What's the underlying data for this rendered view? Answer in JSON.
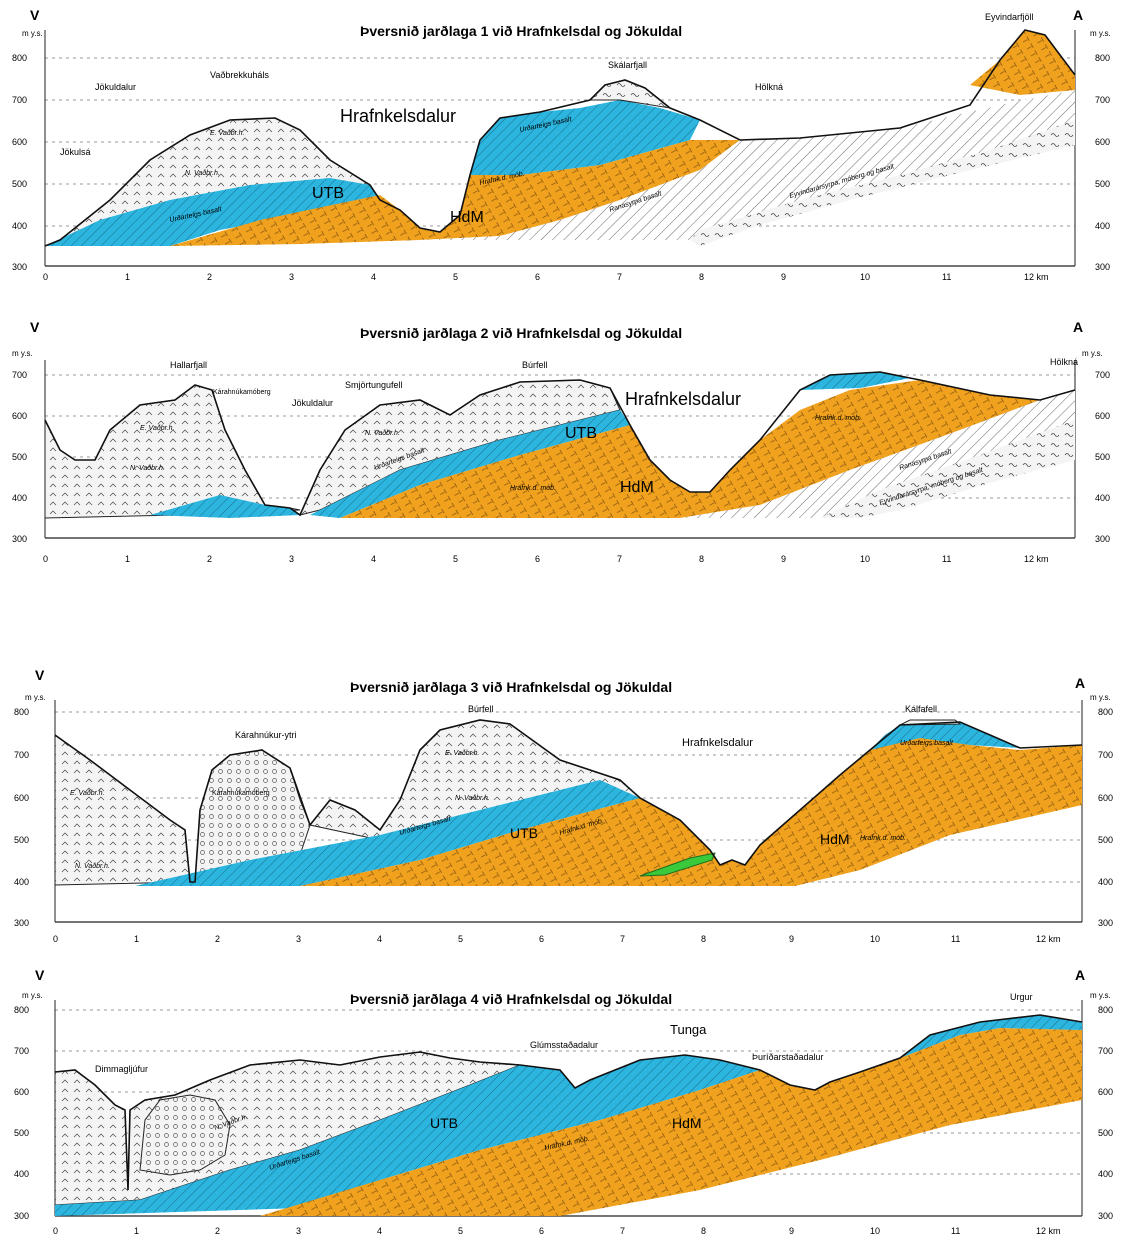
{
  "sections": [
    {
      "title": "Þversnið jarðlaga 1 við Hrafnkelsdal og Jökuldal",
      "west": "V",
      "east": "A",
      "unit": "m y.s.",
      "y_ticks": [
        "300",
        "400",
        "500",
        "600",
        "700",
        "800"
      ],
      "x_ticks": [
        "0",
        "1",
        "2",
        "3",
        "4",
        "5",
        "6",
        "7",
        "8",
        "9",
        "10",
        "11",
        "12 km"
      ],
      "labels": {
        "jokuldalur": "Jökuldalur",
        "vadbrekkuhals": "Vaðbrekkuháls",
        "skalarfjall": "Skálarfjall",
        "eyvindarfjoll": "Eyvindarfjöll",
        "holkna": "Hölkná",
        "jokulsa": "Jökulsá",
        "hrafnkelsdalur": "Hrafnkelsdalur",
        "utb": "UTB",
        "hdm": "HdM",
        "e_vadbr": "E. Vaðbr.h.",
        "n_vadbr": "N. Vaðbr.h.",
        "urdarteigs": "Urðarteigs basalt",
        "hrafnk_mob": "Hrafnk.d. mób.",
        "ranasyrpa": "Ranasyrpa basalt",
        "eyvindarsyrpa": "Eyvindarársyrpa, móberg og basalt"
      }
    },
    {
      "title": "Þversnið jarðlaga 2 við Hrafnkelsdal og Jökuldal",
      "west": "V",
      "east": "A",
      "unit": "m y.s.",
      "y_ticks": [
        "300",
        "400",
        "500",
        "600",
        "700"
      ],
      "x_ticks": [
        "0",
        "1",
        "2",
        "3",
        "4",
        "5",
        "6",
        "7",
        "8",
        "9",
        "10",
        "11",
        "12 km"
      ],
      "labels": {
        "hallarfjall": "Hallarfjall",
        "karahnukamoberg": "Kárahnúkamóberg",
        "jokuldalur": "Jökuldalur",
        "smjortungufell": "Smjörtungufell",
        "burfell": "Búrfell",
        "holkna": "Hölkná",
        "hrafnkelsdalur": "Hrafnkelsdalur",
        "utb": "UTB",
        "hdm": "HdM",
        "e_vadbr": "E. Vaðbr.h.",
        "n_vadbr": "N. Vaðbr.h.",
        "urdarteigs": "Urðarteigs basalt",
        "hrafnk_mob": "Hrafnk.d. mób.",
        "ranasyrpa": "Ranasyrpa basalt",
        "eyvindarsyrpa": "Eyvindarársyrpa, móberg og basalt"
      }
    },
    {
      "title": "Þversnið jarðlaga 3 við Hrafnkelsdal og Jökuldal",
      "west": "V",
      "east": "A",
      "unit": "m y.s.",
      "y_ticks": [
        "300",
        "400",
        "500",
        "600",
        "700",
        "800"
      ],
      "x_ticks": [
        "0",
        "1",
        "2",
        "3",
        "4",
        "5",
        "6",
        "7",
        "8",
        "9",
        "10",
        "11",
        "12 km"
      ],
      "labels": {
        "karahnukur": "Kárahnúkur-ytri",
        "burfell": "Búrfell",
        "hrafnkelsdalur": "Hrafnkelsdalur",
        "kalfafell": "Kálfafell",
        "karahnukamoberg": "Kárahnúkamóberg",
        "utb": "UTB",
        "hdm": "HdM",
        "e_vadbr": "E. Vaðbr.h.",
        "n_vadbr": "N. Vaðbr.h.",
        "urdarteigs": "Urðarteigs basalt",
        "hrafnk_mob": "Hrafnk.d. mób."
      }
    },
    {
      "title": "Þversnið jarðlaga 4 við Hrafnkelsdal og Jökuldal",
      "west": "V",
      "east": "A",
      "unit": "m y.s.",
      "y_ticks": [
        "300",
        "400",
        "500",
        "600",
        "700",
        "800"
      ],
      "x_ticks": [
        "0",
        "1",
        "2",
        "3",
        "4",
        "5",
        "6",
        "7",
        "8",
        "9",
        "10",
        "11",
        "12 km"
      ],
      "labels": {
        "dimmagljufur": "Dimmagljúfur",
        "glumsstadadalur": "Glúmsstaðadalur",
        "tunga": "Tunga",
        "thuridarstadadalur": "Þuríðarstaðadalur",
        "urgur": "Urgur",
        "utb": "UTB",
        "hdm": "HdM",
        "n_vadbr": "N. Vaðbr.h.",
        "urdarteigs": "Urðarteigs basalt",
        "hrafnk_mob": "Hrafnk.d. mób."
      }
    }
  ],
  "colors": {
    "utb": "#2bb5df",
    "hdm": "#f0a21e",
    "green_dyke": "#39c93a",
    "white_units": "#f4f4f4"
  }
}
